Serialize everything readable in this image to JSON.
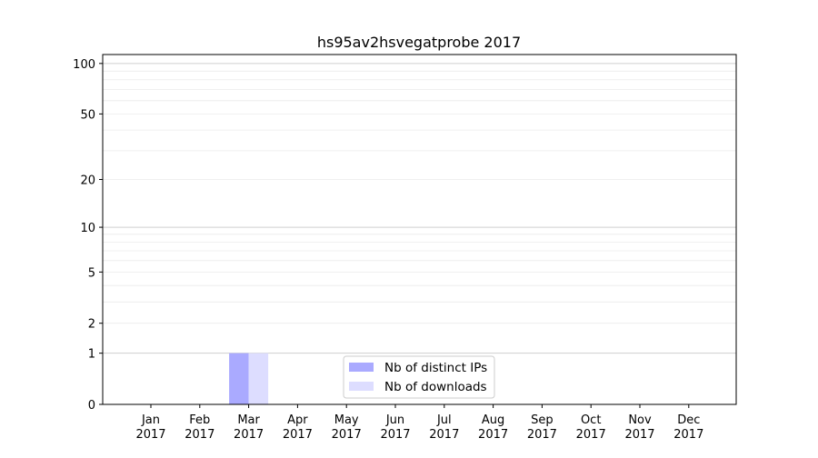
{
  "chart_data": {
    "type": "bar",
    "title": "hs95av2hsvegatprobe 2017",
    "xlabel": "",
    "ylabel": "",
    "yscale": "log10(y+1)",
    "ylim": [
      0,
      113
    ],
    "yticks": [
      0,
      1,
      2,
      5,
      10,
      20,
      50,
      100
    ],
    "ytick_labels": [
      "0",
      "1",
      "2",
      "5",
      "10",
      "20",
      "50",
      "100"
    ],
    "grid": true,
    "categories": [
      [
        "Jan",
        "2017"
      ],
      [
        "Feb",
        "2017"
      ],
      [
        "Mar",
        "2017"
      ],
      [
        "Apr",
        "2017"
      ],
      [
        "May",
        "2017"
      ],
      [
        "Jun",
        "2017"
      ],
      [
        "Jul",
        "2017"
      ],
      [
        "Aug",
        "2017"
      ],
      [
        "Sep",
        "2017"
      ],
      [
        "Oct",
        "2017"
      ],
      [
        "Nov",
        "2017"
      ],
      [
        "Dec",
        "2017"
      ]
    ],
    "series": [
      {
        "name": "Nb of distinct IPs",
        "color": "#aaaaff",
        "values": [
          0,
          0,
          1,
          0,
          0,
          0,
          0,
          0,
          0,
          0,
          0,
          0
        ]
      },
      {
        "name": "Nb of downloads",
        "color": "#ddddff",
        "values": [
          0,
          0,
          1,
          0,
          0,
          0,
          0,
          0,
          0,
          0,
          0,
          0
        ]
      }
    ],
    "legend_position": "bottom-center"
  }
}
